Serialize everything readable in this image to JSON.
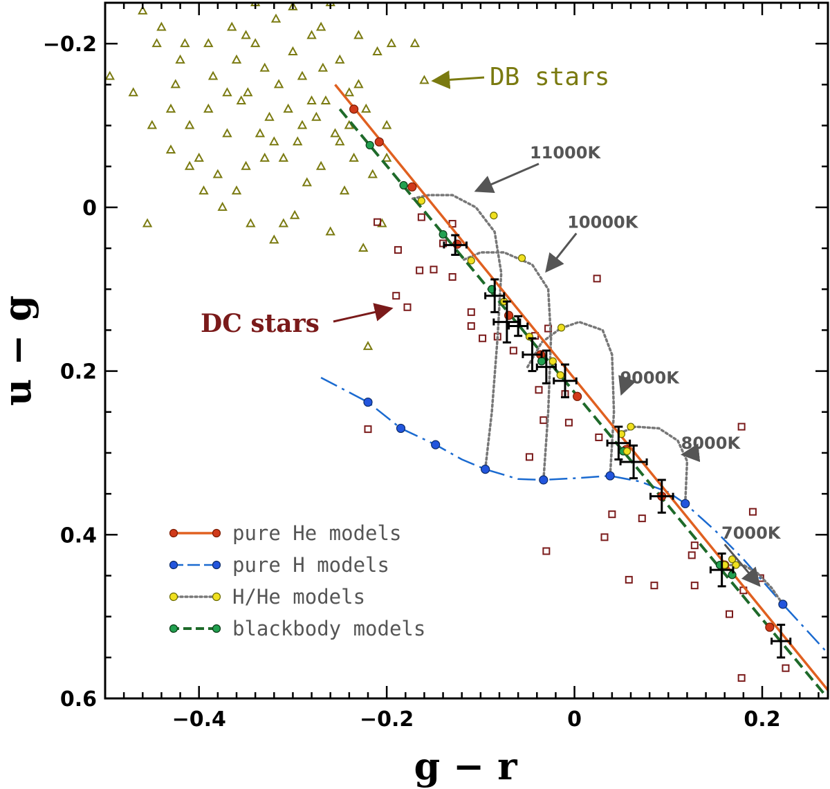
{
  "chart_data": {
    "type": "scatter",
    "xlabel": "g − r",
    "ylabel": "u − g",
    "xlim": [
      -0.5,
      0.27
    ],
    "ylim": [
      0.6,
      -0.25
    ],
    "y_inverted": true,
    "xticks": [
      -0.4,
      -0.2,
      0,
      0.2
    ],
    "xtick_labels": [
      "−0.4",
      "−0.2",
      "0",
      "0.2"
    ],
    "yticks": [
      -0.2,
      0,
      0.2,
      0.4,
      0.6
    ],
    "ytick_labels": [
      "−0.2",
      "0",
      "0.2",
      "0.4",
      "0.6"
    ],
    "colors": {
      "he": "#e06020",
      "he_marker": "#d03a1a",
      "h": "#1a6ad0",
      "h_marker": "#2255dd",
      "hhe_line": "#777777",
      "hhe_marker": "#f0e020",
      "bb": "#1e6a2a",
      "bb_marker": "#22a050",
      "db": "#7a7a10",
      "dc": "#7a1a1a",
      "errbar": "#000000"
    },
    "annotations": {
      "db_label": "DB stars",
      "dc_label": "DC stars",
      "temps": [
        {
          "text": "11000K",
          "text_at": [
            -0.01,
            -0.06
          ],
          "arrow_to": [
            -0.105,
            -0.02
          ]
        },
        {
          "text": "10000K",
          "text_at": [
            0.03,
            0.025
          ],
          "arrow_to": [
            -0.03,
            0.078
          ]
        },
        {
          "text": "9000K",
          "text_at": [
            0.08,
            0.215
          ],
          "arrow_to": [
            0.05,
            0.228
          ]
        },
        {
          "text": "8000K",
          "text_at": [
            0.145,
            0.295
          ],
          "arrow_to": [
            0.115,
            0.302
          ]
        },
        {
          "text": "7000K",
          "text_at": [
            0.188,
            0.405
          ],
          "arrow_to": [
            0.197,
            0.462
          ]
        }
      ]
    },
    "legend": [
      {
        "key": "he",
        "label": "pure He models"
      },
      {
        "key": "h",
        "label": "pure H models"
      },
      {
        "key": "hhe",
        "label": "H/He models"
      },
      {
        "key": "bb",
        "label": "blackbody models"
      }
    ],
    "series": {
      "pure_he_line": [
        [
          -0.255,
          -0.15
        ],
        [
          0.27,
          0.59
        ]
      ],
      "pure_he_points": [
        [
          -0.235,
          -0.12
        ],
        [
          -0.208,
          -0.08
        ],
        [
          -0.173,
          -0.025
        ],
        [
          -0.125,
          0.045
        ],
        [
          -0.07,
          0.132
        ],
        [
          -0.036,
          0.18
        ],
        [
          0.003,
          0.231
        ],
        [
          0.055,
          0.296
        ],
        [
          0.093,
          0.353
        ],
        [
          0.16,
          0.437
        ],
        [
          0.208,
          0.513
        ]
      ],
      "blackbody_line": [
        [
          -0.25,
          -0.12
        ],
        [
          0.27,
          0.6
        ]
      ],
      "blackbody_points": [
        [
          -0.218,
          -0.076
        ],
        [
          -0.182,
          -0.027
        ],
        [
          -0.14,
          0.033
        ],
        [
          -0.088,
          0.1
        ],
        [
          -0.035,
          0.188
        ],
        [
          0.052,
          0.298
        ],
        [
          0.155,
          0.437
        ],
        [
          0.168,
          0.449
        ]
      ],
      "pure_h_curve": [
        [
          -0.27,
          0.208
        ],
        [
          -0.22,
          0.238
        ],
        [
          -0.185,
          0.27
        ],
        [
          -0.148,
          0.29
        ],
        [
          -0.12,
          0.308
        ],
        [
          -0.095,
          0.32
        ],
        [
          -0.06,
          0.332
        ],
        [
          -0.033,
          0.333
        ],
        [
          0,
          0.331
        ],
        [
          0.038,
          0.328
        ],
        [
          0.07,
          0.335
        ],
        [
          0.1,
          0.348
        ],
        [
          0.118,
          0.362
        ],
        [
          0.15,
          0.395
        ],
        [
          0.18,
          0.43
        ],
        [
          0.222,
          0.485
        ],
        [
          0.27,
          0.545
        ]
      ],
      "pure_h_points": [
        [
          -0.22,
          0.238
        ],
        [
          -0.185,
          0.27
        ],
        [
          -0.148,
          0.29
        ],
        [
          -0.095,
          0.32
        ],
        [
          -0.033,
          0.333
        ],
        [
          0.038,
          0.328
        ],
        [
          0.118,
          0.362
        ],
        [
          0.222,
          0.485
        ]
      ],
      "hhe_curves": [
        [
          [
            -0.095,
            0.32
          ],
          [
            -0.088,
            0.25
          ],
          [
            -0.082,
            0.16
          ],
          [
            -0.078,
            0.08
          ],
          [
            -0.085,
            0.03
          ],
          [
            -0.105,
            0.0
          ],
          [
            -0.13,
            -0.015
          ],
          [
            -0.155,
            -0.015
          ],
          [
            -0.175,
            -0.01
          ]
        ],
        [
          [
            -0.033,
            0.333
          ],
          [
            -0.028,
            0.25
          ],
          [
            -0.025,
            0.16
          ],
          [
            -0.028,
            0.1
          ],
          [
            -0.045,
            0.07
          ],
          [
            -0.075,
            0.055
          ],
          [
            -0.1,
            0.055
          ],
          [
            -0.12,
            0.065
          ]
        ],
        [
          [
            0.038,
            0.328
          ],
          [
            0.042,
            0.25
          ],
          [
            0.04,
            0.18
          ],
          [
            0.03,
            0.15
          ],
          [
            0.005,
            0.14
          ],
          [
            -0.015,
            0.148
          ],
          [
            -0.035,
            0.165
          ],
          [
            -0.05,
            0.195
          ]
        ],
        [
          [
            0.118,
            0.362
          ],
          [
            0.12,
            0.31
          ],
          [
            0.11,
            0.285
          ],
          [
            0.09,
            0.27
          ],
          [
            0.065,
            0.268
          ],
          [
            0.05,
            0.275
          ]
        ],
        [
          [
            0.222,
            0.485
          ],
          [
            0.21,
            0.465
          ],
          [
            0.195,
            0.447
          ],
          [
            0.18,
            0.437
          ],
          [
            0.166,
            0.437
          ]
        ]
      ],
      "hhe_points": [
        [
          -0.163,
          -0.008
        ],
        [
          -0.086,
          0.01
        ],
        [
          -0.11,
          0.065
        ],
        [
          -0.056,
          0.062
        ],
        [
          -0.075,
          0.115
        ],
        [
          -0.048,
          0.158
        ],
        [
          -0.014,
          0.147
        ],
        [
          -0.023,
          0.188
        ],
        [
          -0.015,
          0.205
        ],
        [
          0.06,
          0.268
        ],
        [
          0.05,
          0.277
        ],
        [
          0.056,
          0.298
        ],
        [
          0.16,
          0.437
        ],
        [
          0.168,
          0.43
        ],
        [
          0.172,
          0.437
        ]
      ],
      "error_bar_points": [
        {
          "x": -0.127,
          "y": 0.046,
          "xerr": 0.012,
          "yerr": 0.012
        },
        {
          "x": -0.085,
          "y": 0.108,
          "xerr": 0.01,
          "yerr": 0.02
        },
        {
          "x": -0.072,
          "y": 0.14,
          "xerr": 0.014,
          "yerr": 0.025
        },
        {
          "x": -0.06,
          "y": 0.145,
          "xerr": 0.01,
          "yerr": 0.012
        },
        {
          "x": -0.045,
          "y": 0.18,
          "xerr": 0.01,
          "yerr": 0.02
        },
        {
          "x": -0.03,
          "y": 0.195,
          "xerr": 0.01,
          "yerr": 0.02
        },
        {
          "x": -0.01,
          "y": 0.212,
          "xerr": 0.012,
          "yerr": 0.02
        },
        {
          "x": 0.047,
          "y": 0.288,
          "xerr": 0.012,
          "yerr": 0.02
        },
        {
          "x": 0.063,
          "y": 0.311,
          "xerr": 0.014,
          "yerr": 0.02
        },
        {
          "x": 0.093,
          "y": 0.353,
          "xerr": 0.012,
          "yerr": 0.02
        },
        {
          "x": 0.157,
          "y": 0.443,
          "xerr": 0.012,
          "yerr": 0.02
        },
        {
          "x": 0.22,
          "y": 0.53,
          "xerr": 0.01,
          "yerr": 0.02
        }
      ],
      "dc_stars": [
        [
          -0.21,
          0.018
        ],
        [
          -0.188,
          0.052
        ],
        [
          -0.165,
          0.077
        ],
        [
          -0.15,
          0.076
        ],
        [
          -0.163,
          0.012
        ],
        [
          -0.14,
          0.044
        ],
        [
          -0.13,
          0.02
        ],
        [
          -0.13,
          0.085
        ],
        [
          -0.19,
          0.108
        ],
        [
          -0.178,
          0.122
        ],
        [
          -0.11,
          0.128
        ],
        [
          -0.11,
          0.145
        ],
        [
          -0.098,
          0.16
        ],
        [
          -0.082,
          0.158
        ],
        [
          -0.065,
          0.175
        ],
        [
          -0.042,
          0.157
        ],
        [
          -0.038,
          0.223
        ],
        [
          -0.033,
          0.26
        ],
        [
          -0.028,
          0.148
        ],
        [
          -0.01,
          0.228
        ],
        [
          -0.006,
          0.263
        ],
        [
          -0.048,
          0.305
        ],
        [
          0.024,
          0.087
        ],
        [
          0.026,
          0.281
        ],
        [
          0.04,
          0.375
        ],
        [
          0.032,
          0.403
        ],
        [
          0.072,
          0.38
        ],
        [
          0.058,
          0.455
        ],
        [
          0.085,
          0.462
        ],
        [
          0.125,
          0.425
        ],
        [
          0.128,
          0.413
        ],
        [
          0.128,
          0.462
        ],
        [
          0.165,
          0.497
        ],
        [
          0.178,
          0.268
        ],
        [
          0.19,
          0.372
        ],
        [
          0.18,
          0.468
        ],
        [
          0.198,
          0.453
        ],
        [
          0.225,
          0.563
        ],
        [
          0.178,
          0.575
        ],
        [
          -0.22,
          0.271
        ],
        [
          -0.03,
          0.42
        ]
      ],
      "db_stars": [
        [
          -0.495,
          -0.16
        ],
        [
          -0.47,
          -0.14
        ],
        [
          -0.46,
          -0.24
        ],
        [
          -0.455,
          0.02
        ],
        [
          -0.445,
          -0.2
        ],
        [
          -0.44,
          -0.22
        ],
        [
          -0.43,
          -0.07
        ],
        [
          -0.425,
          -0.15
        ],
        [
          -0.42,
          -0.18
        ],
        [
          -0.41,
          -0.1
        ],
        [
          -0.4,
          -0.06
        ],
        [
          -0.395,
          -0.02
        ],
        [
          -0.39,
          -0.12
        ],
        [
          -0.385,
          -0.16
        ],
        [
          -0.38,
          -0.04
        ],
        [
          -0.375,
          0.0
        ],
        [
          -0.37,
          -0.09
        ],
        [
          -0.365,
          -0.22
        ],
        [
          -0.36,
          -0.18
        ],
        [
          -0.355,
          -0.13
        ],
        [
          -0.35,
          -0.05
        ],
        [
          -0.348,
          -0.14
        ],
        [
          -0.345,
          0.02
        ],
        [
          -0.34,
          -0.2
        ],
        [
          -0.335,
          -0.09
        ],
        [
          -0.33,
          -0.17
        ],
        [
          -0.325,
          -0.11
        ],
        [
          -0.32,
          0.04
        ],
        [
          -0.318,
          -0.23
        ],
        [
          -0.315,
          -0.15
        ],
        [
          -0.31,
          -0.06
        ],
        [
          -0.305,
          -0.12
        ],
        [
          -0.3,
          -0.19
        ],
        [
          -0.298,
          0.01
        ],
        [
          -0.295,
          -0.08
        ],
        [
          -0.29,
          -0.16
        ],
        [
          -0.285,
          -0.03
        ],
        [
          -0.28,
          -0.21
        ],
        [
          -0.275,
          -0.11
        ],
        [
          -0.27,
          -0.05
        ],
        [
          -0.268,
          -0.17
        ],
        [
          -0.265,
          -0.13
        ],
        [
          -0.26,
          0.03
        ],
        [
          -0.255,
          -0.09
        ],
        [
          -0.25,
          -0.18
        ],
        [
          -0.245,
          -0.02
        ],
        [
          -0.24,
          -0.14
        ],
        [
          -0.235,
          -0.06
        ],
        [
          -0.23,
          -0.21
        ],
        [
          -0.225,
          0.05
        ],
        [
          -0.222,
          -0.12
        ],
        [
          -0.22,
          0.17
        ],
        [
          -0.215,
          -0.04
        ],
        [
          -0.21,
          -0.19
        ],
        [
          -0.205,
          0.02
        ],
        [
          -0.2,
          -0.1
        ],
        [
          -0.195,
          -0.2
        ],
        [
          -0.17,
          -0.2
        ],
        [
          -0.16,
          -0.155
        ],
        [
          -0.43,
          -0.12
        ],
        [
          -0.41,
          -0.05
        ],
        [
          -0.39,
          -0.2
        ],
        [
          -0.37,
          -0.14
        ],
        [
          -0.35,
          -0.21
        ],
        [
          -0.33,
          -0.06
        ],
        [
          -0.31,
          0.02
        ],
        [
          -0.29,
          -0.1
        ],
        [
          -0.27,
          -0.22
        ],
        [
          -0.25,
          -0.08
        ],
        [
          -0.23,
          -0.15
        ],
        [
          -0.34,
          -0.25
        ],
        [
          -0.3,
          -0.245
        ],
        [
          -0.26,
          -0.25
        ],
        [
          -0.45,
          -0.1
        ],
        [
          -0.415,
          -0.2
        ],
        [
          -0.36,
          -0.02
        ],
        [
          -0.32,
          -0.08
        ],
        [
          -0.28,
          -0.13
        ],
        [
          -0.24,
          -0.1
        ],
        [
          -0.2,
          -0.06
        ]
      ]
    }
  }
}
